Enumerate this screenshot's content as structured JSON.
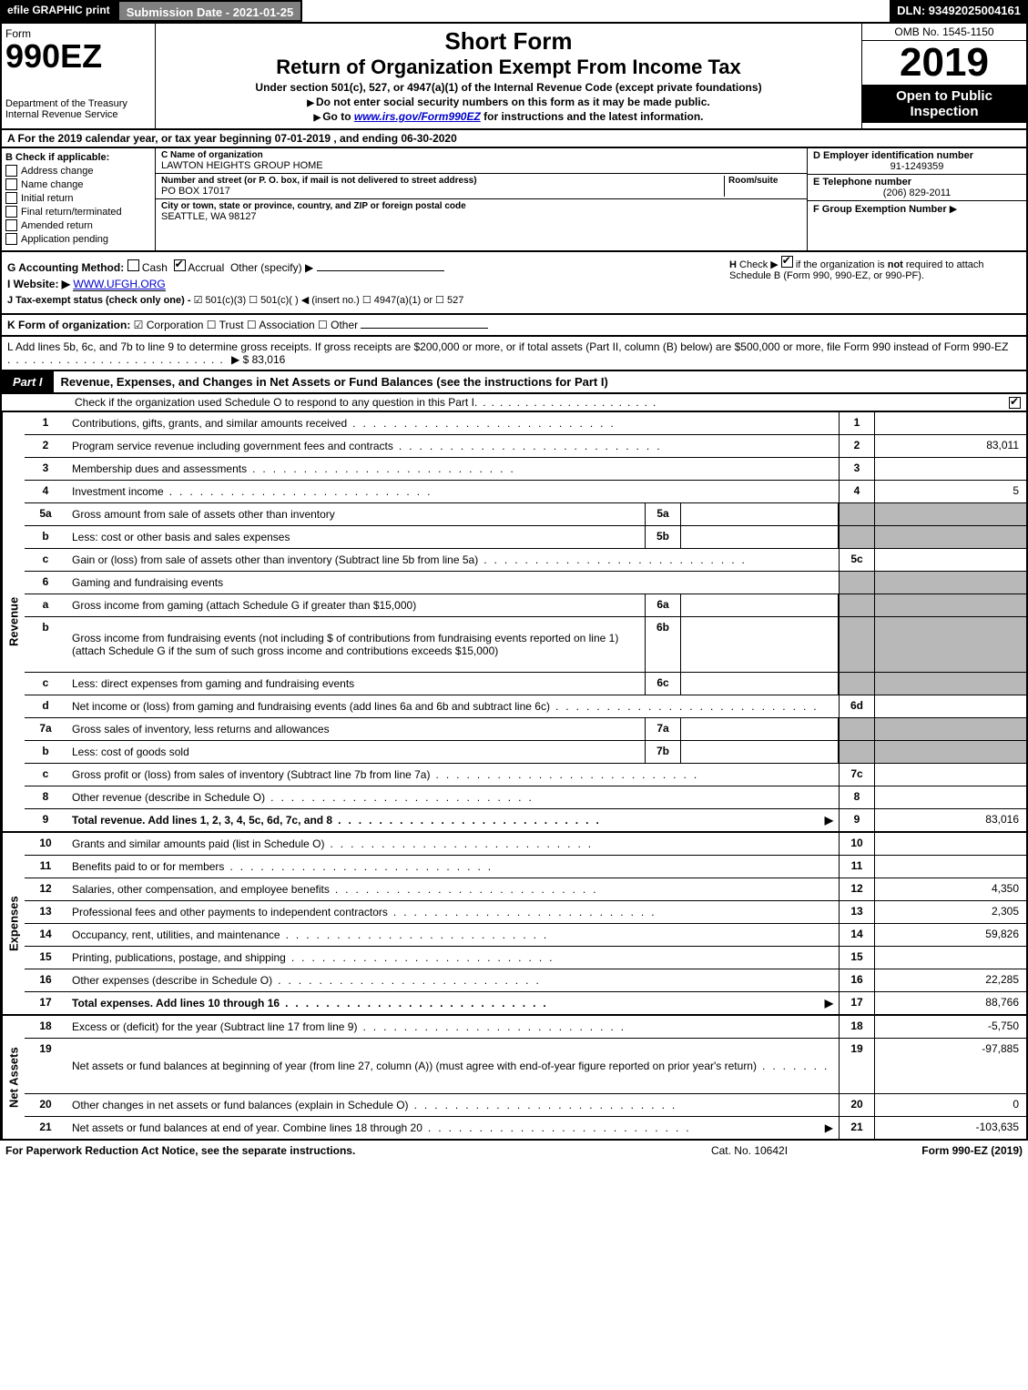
{
  "topbar": {
    "efile": "efile GRAPHIC print",
    "submission": "Submission Date - 2021-01-25",
    "dln": "DLN: 93492025004161"
  },
  "header": {
    "form_label": "Form",
    "form_number": "990EZ",
    "dept": "Department of the Treasury",
    "irs": "Internal Revenue Service",
    "title1": "Short Form",
    "title2": "Return of Organization Exempt From Income Tax",
    "subtitle1": "Under section 501(c), 527, or 4947(a)(1) of the Internal Revenue Code (except private foundations)",
    "subtitle2": "Do not enter social security numbers on this form as it may be made public.",
    "subtitle3": "Go to www.irs.gov/Form990EZ for instructions and the latest information.",
    "omb": "OMB No. 1545-1150",
    "year": "2019",
    "inspection": "Open to Public Inspection"
  },
  "row_a": "A For the 2019 calendar year, or tax year beginning 07-01-2019 , and ending 06-30-2020",
  "box_b": {
    "label": "B Check if applicable:",
    "items": [
      "Address change",
      "Name change",
      "Initial return",
      "Final return/terminated",
      "Amended return",
      "Application pending"
    ]
  },
  "box_c": {
    "name_label": "C Name of organization",
    "name": "LAWTON HEIGHTS GROUP HOME",
    "street_label": "Number and street (or P. O. box, if mail is not delivered to street address)",
    "room_label": "Room/suite",
    "street": "PO BOX 17017",
    "city_label": "City or town, state or province, country, and ZIP or foreign postal code",
    "city": "SEATTLE, WA  98127"
  },
  "box_d": {
    "ein_label": "D Employer identification number",
    "ein": "91-1249359",
    "phone_label": "E Telephone number",
    "phone": "(206) 829-2011",
    "group_label": "F Group Exemption Number",
    "group_arrow": "▶"
  },
  "section_g": {
    "g_label": "G Accounting Method:",
    "g_cash": "Cash",
    "g_accrual": "Accrual",
    "g_other": "Other (specify) ▶",
    "h_text": "H Check ▶ ☑ if the organization is not required to attach Schedule B (Form 990, 990-EZ, or 990-PF).",
    "i_label": "I Website: ▶",
    "i_value": "WWW.UFGH.ORG",
    "j_label": "J Tax-exempt status (check only one) -",
    "j_opts": "☑ 501(c)(3)  ☐ 501(c)(  ) ◀ (insert no.)  ☐ 4947(a)(1) or  ☐ 527",
    "k_label": "K Form of organization:",
    "k_opts": "☑ Corporation  ☐ Trust  ☐ Association  ☐ Other"
  },
  "section_l": {
    "text": "L Add lines 5b, 6c, and 7b to line 9 to determine gross receipts. If gross receipts are $200,000 or more, or if total assets (Part II, column (B) below) are $500,000 or more, file Form 990 instead of Form 990-EZ",
    "amount": "▶ $ 83,016"
  },
  "part1": {
    "tab": "Part I",
    "title": "Revenue, Expenses, and Changes in Net Assets or Fund Balances (see the instructions for Part I)",
    "schedule_o": "Check if the organization used Schedule O to respond to any question in this Part I",
    "schedule_o_checked": true
  },
  "sections": [
    {
      "side_label": "Revenue",
      "rows": [
        {
          "num": "1",
          "desc": "Contributions, gifts, grants, and similar amounts received",
          "line": "1",
          "val": ""
        },
        {
          "num": "2",
          "desc": "Program service revenue including government fees and contracts",
          "line": "2",
          "val": "83,011"
        },
        {
          "num": "3",
          "desc": "Membership dues and assessments",
          "line": "3",
          "val": ""
        },
        {
          "num": "4",
          "desc": "Investment income",
          "line": "4",
          "val": "5"
        },
        {
          "num": "5a",
          "desc": "Gross amount from sale of assets other than inventory",
          "midnum": "5a",
          "midval": "",
          "shaded": true
        },
        {
          "num": "b",
          "desc": "Less: cost or other basis and sales expenses",
          "midnum": "5b",
          "midval": "",
          "shaded": true
        },
        {
          "num": "c",
          "desc": "Gain or (loss) from sale of assets other than inventory (Subtract line 5b from line 5a)",
          "line": "5c",
          "val": ""
        },
        {
          "num": "6",
          "desc": "Gaming and fundraising events",
          "noval": true,
          "shaded": true
        },
        {
          "num": "a",
          "desc": "Gross income from gaming (attach Schedule G if greater than $15,000)",
          "midnum": "6a",
          "midval": "",
          "shaded": true
        },
        {
          "num": "b",
          "desc": "Gross income from fundraising events (not including $                    of contributions from fundraising events reported on line 1) (attach Schedule G if the sum of such gross income and contributions exceeds $15,000)",
          "midnum": "6b",
          "midval": "",
          "shaded": true,
          "tall": true
        },
        {
          "num": "c",
          "desc": "Less: direct expenses from gaming and fundraising events",
          "midnum": "6c",
          "midval": "",
          "shaded": true
        },
        {
          "num": "d",
          "desc": "Net income or (loss) from gaming and fundraising events (add lines 6a and 6b and subtract line 6c)",
          "line": "6d",
          "val": ""
        },
        {
          "num": "7a",
          "desc": "Gross sales of inventory, less returns and allowances",
          "midnum": "7a",
          "midval": "",
          "shaded": true
        },
        {
          "num": "b",
          "desc": "Less: cost of goods sold",
          "midnum": "7b",
          "midval": "",
          "shaded": true
        },
        {
          "num": "c",
          "desc": "Gross profit or (loss) from sales of inventory (Subtract line 7b from line 7a)",
          "line": "7c",
          "val": ""
        },
        {
          "num": "8",
          "desc": "Other revenue (describe in Schedule O)",
          "line": "8",
          "val": ""
        },
        {
          "num": "9",
          "desc": "Total revenue. Add lines 1, 2, 3, 4, 5c, 6d, 7c, and 8",
          "line": "9",
          "val": "83,016",
          "bold": true,
          "arrow": true
        }
      ]
    },
    {
      "side_label": "Expenses",
      "rows": [
        {
          "num": "10",
          "desc": "Grants and similar amounts paid (list in Schedule O)",
          "line": "10",
          "val": ""
        },
        {
          "num": "11",
          "desc": "Benefits paid to or for members",
          "line": "11",
          "val": ""
        },
        {
          "num": "12",
          "desc": "Salaries, other compensation, and employee benefits",
          "line": "12",
          "val": "4,350"
        },
        {
          "num": "13",
          "desc": "Professional fees and other payments to independent contractors",
          "line": "13",
          "val": "2,305"
        },
        {
          "num": "14",
          "desc": "Occupancy, rent, utilities, and maintenance",
          "line": "14",
          "val": "59,826"
        },
        {
          "num": "15",
          "desc": "Printing, publications, postage, and shipping",
          "line": "15",
          "val": ""
        },
        {
          "num": "16",
          "desc": "Other expenses (describe in Schedule O)",
          "line": "16",
          "val": "22,285"
        },
        {
          "num": "17",
          "desc": "Total expenses. Add lines 10 through 16",
          "line": "17",
          "val": "88,766",
          "bold": true,
          "arrow": true
        }
      ]
    },
    {
      "side_label": "Net Assets",
      "rows": [
        {
          "num": "18",
          "desc": "Excess or (deficit) for the year (Subtract line 17 from line 9)",
          "line": "18",
          "val": "-5,750"
        },
        {
          "num": "19",
          "desc": "Net assets or fund balances at beginning of year (from line 27, column (A)) (must agree with end-of-year figure reported on prior year's return)",
          "line": "19",
          "val": "-97,885",
          "tall": true
        },
        {
          "num": "20",
          "desc": "Other changes in net assets or fund balances (explain in Schedule O)",
          "line": "20",
          "val": "0"
        },
        {
          "num": "21",
          "desc": "Net assets or fund balances at end of year. Combine lines 18 through 20",
          "line": "21",
          "val": "-103,635",
          "arrow": true
        }
      ]
    }
  ],
  "footer": {
    "left": "For Paperwork Reduction Act Notice, see the separate instructions.",
    "mid": "Cat. No. 10642I",
    "right": "Form 990-EZ (2019)"
  },
  "colors": {
    "black": "#000000",
    "gray_header": "#808080",
    "shaded_cell": "#b8b8b8",
    "link": "#0000cc"
  }
}
